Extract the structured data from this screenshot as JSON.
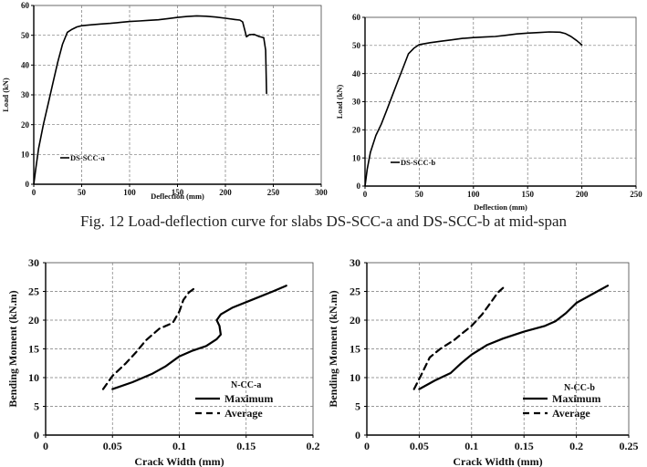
{
  "figure_caption": "Fig. 12 Load-deflection curve for slabs DS-SCC-a and DS-SCC-b at mid-span",
  "chart_data": [
    {
      "type": "line",
      "title": "",
      "xlabel": "Deflection (mm)",
      "ylabel": "Load (kN)",
      "xlim": [
        0,
        300
      ],
      "ylim": [
        0,
        60
      ],
      "xticks": [
        "0",
        "50",
        "100",
        "150",
        "200",
        "250",
        "300"
      ],
      "yticks": [
        "0",
        "10",
        "20",
        "30",
        "40",
        "50",
        "60"
      ],
      "grid": true,
      "legend_position": "left-middle",
      "series": [
        {
          "name": "DS-SCC-a",
          "style": "solid",
          "x": [
            0,
            2,
            5,
            10,
            15,
            20,
            25,
            30,
            35,
            40,
            45,
            50,
            60,
            70,
            80,
            90,
            100,
            110,
            120,
            130,
            140,
            150,
            160,
            170,
            180,
            190,
            200,
            210,
            215,
            218,
            220,
            222,
            225,
            230,
            235,
            240,
            242,
            243
          ],
          "y": [
            0,
            5,
            12,
            20,
            27,
            34,
            41,
            47,
            51,
            52,
            52.8,
            53.2,
            53.5,
            53.8,
            54,
            54.3,
            54.6,
            54.8,
            55,
            55.2,
            55.6,
            56,
            56.3,
            56.5,
            56.4,
            56.1,
            55.7,
            55.3,
            55.1,
            54.5,
            52,
            49.5,
            50.2,
            50.3,
            49.6,
            49.2,
            45,
            30.5
          ]
        }
      ]
    },
    {
      "type": "line",
      "title": "",
      "xlabel": "Deflection (mm)",
      "ylabel": "Load (kN)",
      "xlim": [
        0,
        250
      ],
      "ylim": [
        0,
        60
      ],
      "xticks": [
        "0",
        "50",
        "100",
        "150",
        "200",
        "250"
      ],
      "yticks": [
        "0",
        "10",
        "20",
        "30",
        "40",
        "50",
        "60"
      ],
      "grid": true,
      "legend_position": "left-middle",
      "series": [
        {
          "name": "DS-SCC-b",
          "style": "solid",
          "x": [
            0,
            2,
            5,
            10,
            15,
            20,
            25,
            30,
            35,
            40,
            45,
            50,
            60,
            70,
            80,
            90,
            100,
            110,
            120,
            130,
            140,
            150,
            160,
            170,
            180,
            185,
            190,
            195,
            200
          ],
          "y": [
            0,
            6,
            12,
            18,
            22,
            27,
            32,
            37,
            42,
            47,
            49,
            50.3,
            51,
            51.5,
            52,
            52.5,
            52.8,
            53,
            53.2,
            53.6,
            54.1,
            54.4,
            54.6,
            54.8,
            54.7,
            54.2,
            53.2,
            51.8,
            50.2
          ]
        }
      ]
    },
    {
      "type": "line",
      "title": "",
      "xlabel": "Crack Width (mm)",
      "ylabel": "Bending Moment (kN.m)",
      "xlim": [
        0,
        0.2
      ],
      "ylim": [
        0,
        30
      ],
      "xticks": [
        "0",
        "0.05",
        "0.1",
        "0.15",
        "0.2"
      ],
      "yticks": [
        "0",
        "5",
        "10",
        "15",
        "20",
        "25",
        "30"
      ],
      "grid": true,
      "legend_position": "bottom-right",
      "legend_label": "N-CC-a",
      "series": [
        {
          "name": "Maximum",
          "style": "solid",
          "x": [
            0.05,
            0.065,
            0.08,
            0.09,
            0.1,
            0.11,
            0.12,
            0.128,
            0.131,
            0.13,
            0.128,
            0.131,
            0.14,
            0.155,
            0.17,
            0.18
          ],
          "y": [
            8,
            9.2,
            10.7,
            12,
            13.7,
            14.7,
            15.5,
            16.7,
            17.5,
            19,
            20,
            21,
            22.2,
            23.6,
            25,
            26
          ]
        },
        {
          "name": "Average",
          "style": "dashed",
          "x": [
            0.043,
            0.05,
            0.06,
            0.068,
            0.075,
            0.085,
            0.095,
            0.1,
            0.103,
            0.107,
            0.111
          ],
          "y": [
            8,
            10.3,
            12.5,
            14.5,
            16.5,
            18.5,
            19.5,
            21.5,
            23.5,
            24.8,
            25.5
          ]
        }
      ]
    },
    {
      "type": "line",
      "title": "",
      "xlabel": "Crack Width (mm)",
      "ylabel": "Bending Moment (kN.m)",
      "xlim": [
        0,
        0.25
      ],
      "ylim": [
        0,
        30
      ],
      "xticks": [
        "0",
        "0.05",
        "0.1",
        "0.15",
        "0.2",
        "0.25"
      ],
      "yticks": [
        "0",
        "5",
        "10",
        "15",
        "20",
        "25",
        "30"
      ],
      "grid": true,
      "legend_position": "bottom-right",
      "legend_label": "N-CC-b",
      "series": [
        {
          "name": "Maximum",
          "style": "solid",
          "x": [
            0.05,
            0.065,
            0.08,
            0.09,
            0.1,
            0.115,
            0.13,
            0.15,
            0.17,
            0.18,
            0.19,
            0.2,
            0.215,
            0.23
          ],
          "y": [
            8,
            9.5,
            10.8,
            12.5,
            14,
            15.7,
            16.8,
            18,
            19,
            19.8,
            21.2,
            23,
            24.5,
            26
          ]
        },
        {
          "name": "Average",
          "style": "dashed",
          "x": [
            0.045,
            0.052,
            0.06,
            0.07,
            0.083,
            0.093,
            0.1,
            0.11,
            0.118,
            0.125,
            0.13
          ],
          "y": [
            8,
            10.5,
            13.5,
            15,
            16.5,
            18,
            19,
            21,
            23,
            24.8,
            25.6
          ]
        }
      ]
    }
  ]
}
